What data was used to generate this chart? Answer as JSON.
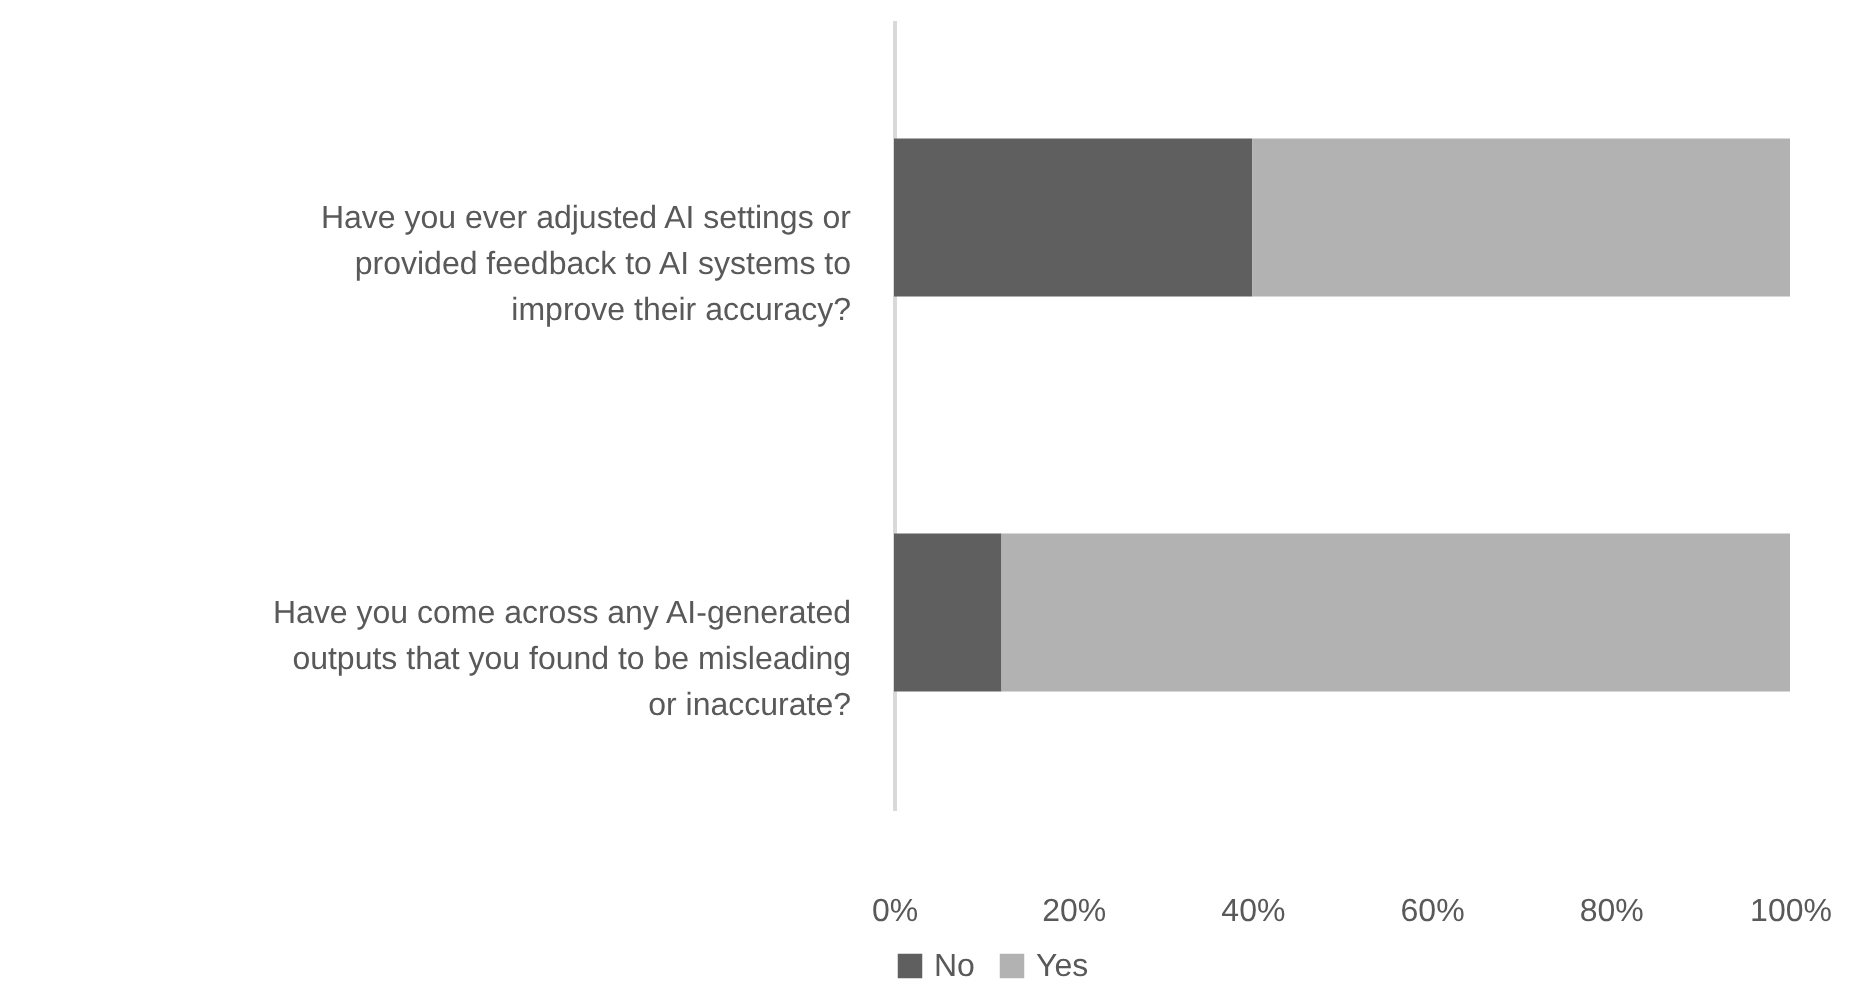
{
  "chart_data": {
    "type": "bar",
    "orientation": "horizontal",
    "stacked": true,
    "categories": [
      "Have you ever adjusted AI settings or provided feedback to AI systems to improve their accuracy?",
      "Have you come across any AI-generated outputs that you found to be misleading or inaccurate?"
    ],
    "series": [
      {
        "name": "No",
        "color": "#5f5f5f",
        "values": [
          40,
          12
        ]
      },
      {
        "name": "Yes",
        "color": "#b2b2b2",
        "values": [
          60,
          88
        ]
      }
    ],
    "xlim": [
      0,
      100
    ],
    "xticks": [
      {
        "value": 0,
        "label": "0%"
      },
      {
        "value": 20,
        "label": "20%"
      },
      {
        "value": 40,
        "label": "40%"
      },
      {
        "value": 60,
        "label": "60%"
      },
      {
        "value": 80,
        "label": "80%"
      },
      {
        "value": 100,
        "label": "100%"
      }
    ],
    "legend": "bottom",
    "grid": false
  }
}
